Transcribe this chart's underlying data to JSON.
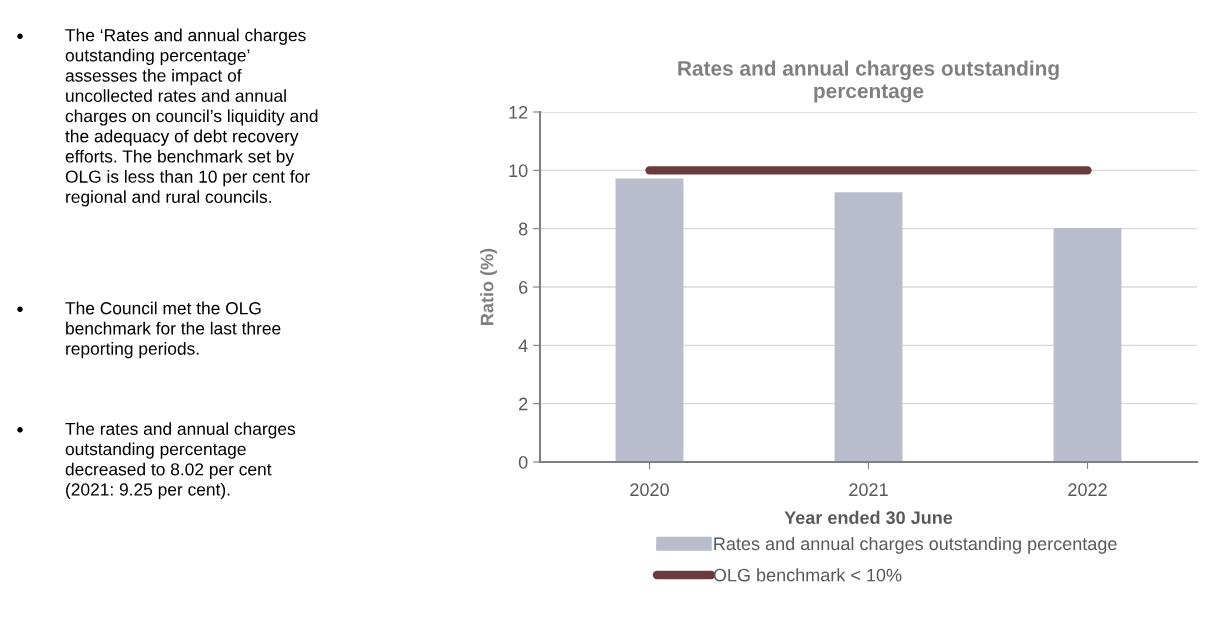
{
  "chart_data": {
    "type": "bar",
    "title": "Rates and annual charges outstanding\npercentage",
    "xlabel": "Year ended 30 June",
    "ylabel": "Ratio (%)",
    "categories": [
      "2020",
      "2021",
      "2022"
    ],
    "series": [
      {
        "name": "Rates and annual charges outstanding percentage",
        "color": "#b8bccc",
        "values": [
          9.72,
          9.25,
          8.02
        ]
      },
      {
        "name": "OLG benchmark < 10%",
        "type": "line",
        "color": "#6b3a3a",
        "values": [
          10,
          10,
          10
        ]
      }
    ],
    "ylim": [
      0,
      12
    ],
    "yticks": [
      0,
      2,
      4,
      6,
      8,
      10,
      12
    ],
    "grid": "y",
    "legend": "bottom",
    "annotations": [
      "The ‘Rates and annual charges\noutstanding percentage’\nassesses the impact of\nuncollected rates and annual\ncharges on council’s liquidity and\nthe adequacy of debt recovery\nefforts. The benchmark set by\nOLG is less than 10 per cent for\nregional and rural councils.",
      "The Council met the OLG\nbenchmark for the last three\nreporting periods.",
      "The rates and annual charges\noutstanding percentage\ndecreased to 8.02 per cent\n(2021: 9.25 per cent)."
    ]
  }
}
